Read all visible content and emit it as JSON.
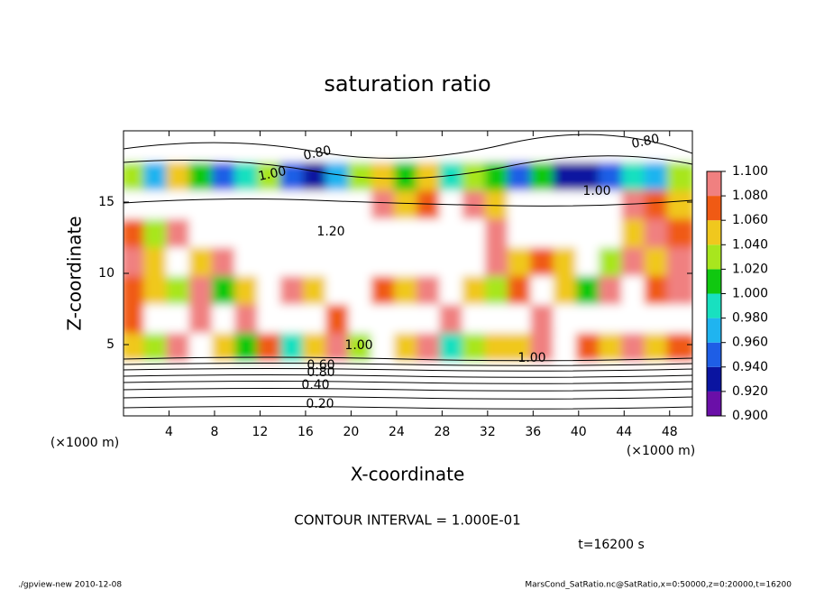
{
  "chart_data": {
    "type": "contour",
    "title": "saturation ratio",
    "x_label": "X-coordinate",
    "y_label": "Z-coordinate",
    "x_unit": "(×1000 m)",
    "y_unit": "(×1000 m)",
    "xlim": [
      0,
      50
    ],
    "ylim": [
      0,
      20
    ],
    "xticks": [
      4,
      8,
      12,
      16,
      20,
      24,
      28,
      32,
      36,
      40,
      44,
      48
    ],
    "yticks": [
      5,
      10,
      15
    ],
    "x": [
      1,
      3,
      5,
      7,
      9,
      11,
      13,
      15,
      17,
      19,
      21,
      23,
      25,
      27,
      29,
      31,
      33,
      35,
      37,
      39,
      41,
      43,
      45,
      47,
      49
    ],
    "z": [
      1,
      3,
      5,
      7,
      9,
      11,
      13,
      15,
      17,
      19
    ],
    "values": [
      [
        0.3,
        0.3,
        0.3,
        0.3,
        0.3,
        0.3,
        0.3,
        0.3,
        0.3,
        0.3,
        0.3,
        0.3,
        0.3,
        0.3,
        0.3,
        0.3,
        0.3,
        0.3,
        0.3,
        0.3,
        0.3,
        0.3,
        0.3,
        0.3,
        0.3
      ],
      [
        0.7,
        0.7,
        0.7,
        0.7,
        0.7,
        0.7,
        0.7,
        0.7,
        0.7,
        0.7,
        0.7,
        0.7,
        0.7,
        0.7,
        0.7,
        0.7,
        0.7,
        0.7,
        0.7,
        0.7,
        0.7,
        0.7,
        0.7,
        0.7,
        0.7
      ],
      [
        1.06,
        1.04,
        1.08,
        1.12,
        1.05,
        1.02,
        1.07,
        1.0,
        1.05,
        1.09,
        1.04,
        1.12,
        1.06,
        1.08,
        1.0,
        1.03,
        1.06,
        1.05,
        1.08,
        1.12,
        1.07,
        1.06,
        1.09,
        1.05,
        1.07
      ],
      [
        1.07,
        1.12,
        1.15,
        1.09,
        1.13,
        1.08,
        1.14,
        1.12,
        1.15,
        1.07,
        1.13,
        1.16,
        1.12,
        1.15,
        1.09,
        1.13,
        1.14,
        1.12,
        1.08,
        1.13,
        1.15,
        1.11,
        1.13,
        1.14,
        1.12
      ],
      [
        1.07,
        1.06,
        1.04,
        1.08,
        1.02,
        1.05,
        1.12,
        1.08,
        1.06,
        1.14,
        1.16,
        1.07,
        1.05,
        1.09,
        1.13,
        1.06,
        1.04,
        1.07,
        1.12,
        1.06,
        1.02,
        1.08,
        1.12,
        1.07,
        1.09
      ],
      [
        1.08,
        1.05,
        1.12,
        1.06,
        1.09,
        1.15,
        1.14,
        1.17,
        1.18,
        1.16,
        1.12,
        1.15,
        1.14,
        1.16,
        1.13,
        1.15,
        1.08,
        1.05,
        1.07,
        1.06,
        1.12,
        1.03,
        1.08,
        1.06,
        1.09
      ],
      [
        1.07,
        1.04,
        1.08,
        1.13,
        1.15,
        1.18,
        1.2,
        1.19,
        1.16,
        1.17,
        1.13,
        1.15,
        1.16,
        1.12,
        1.14,
        1.15,
        1.08,
        1.13,
        1.12,
        1.16,
        1.14,
        1.12,
        1.06,
        1.09,
        1.07
      ],
      [
        1.13,
        1.16,
        1.18,
        1.2,
        1.22,
        1.19,
        1.21,
        1.23,
        1.2,
        1.18,
        1.15,
        1.09,
        1.05,
        1.07,
        1.12,
        1.08,
        1.06,
        1.13,
        1.15,
        1.12,
        1.16,
        1.14,
        1.1,
        1.07,
        1.05
      ],
      [
        1.04,
        0.98,
        1.05,
        1.02,
        0.96,
        1.0,
        1.04,
        0.95,
        0.93,
        0.97,
        1.03,
        1.05,
        1.02,
        1.06,
        0.99,
        1.04,
        1.02,
        0.96,
        1.01,
        0.94,
        0.92,
        0.95,
        1.0,
        0.97,
        1.03
      ],
      [
        0.8,
        0.8,
        0.8,
        0.8,
        0.8,
        0.8,
        0.8,
        0.8,
        0.8,
        0.8,
        0.8,
        0.8,
        0.8,
        0.8,
        0.8,
        0.8,
        0.8,
        0.8,
        0.8,
        0.8,
        0.8,
        0.8,
        0.8,
        0.8,
        0.8
      ]
    ],
    "clim": [
      0.9,
      1.1
    ],
    "colors": [
      "#6a0fa8",
      "#0a14a0",
      "#1e5ee6",
      "#1fb4f0",
      "#18e0c0",
      "#10c810",
      "#a8e61e",
      "#f0c81e",
      "#f05a14",
      "#f08080"
    ],
    "cticks": [
      {
        "value": 0.9,
        "label": "0.900"
      },
      {
        "value": 0.92,
        "label": "0.920"
      },
      {
        "value": 0.94,
        "label": "0.940"
      },
      {
        "value": 0.96,
        "label": "0.960"
      },
      {
        "value": 0.98,
        "label": "0.980"
      },
      {
        "value": 1.0,
        "label": "1.000"
      },
      {
        "value": 1.02,
        "label": "1.020"
      },
      {
        "value": 1.04,
        "label": "1.040"
      },
      {
        "value": 1.06,
        "label": "1.060"
      },
      {
        "value": 1.08,
        "label": "1.080"
      },
      {
        "value": 1.1,
        "label": "1.100"
      }
    ],
    "contour_labels": [
      "0.80",
      "0.80",
      "1.00",
      "1.00",
      "1.20",
      "1.00",
      "1.00",
      "0.60",
      "0.80",
      "0.40",
      "0.20"
    ],
    "contour_interval": "CONTOUR INTERVAL = 1.000E-01",
    "time_label": "t=16200 s",
    "footer_left": "./gpview-new  2010-12-08",
    "footer_right": "MarsCond_SatRatio.nc@SatRatio,x=0:50000,z=0:20000,t=16200"
  }
}
